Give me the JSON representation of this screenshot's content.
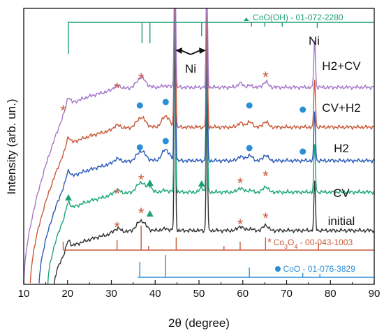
{
  "chart_data": {
    "type": "line",
    "xlabel": "2θ (degree)",
    "ylabel": "Intensity (arb. un.)",
    "xlim": [
      10,
      90
    ],
    "x_ticks": [
      "10",
      "20",
      "30",
      "40",
      "50",
      "60",
      "70",
      "80",
      "90"
    ],
    "grid": false,
    "series": [
      {
        "name": "initial",
        "color": "#333333",
        "offset": 0.0
      },
      {
        "name": "CV",
        "color": "#1aa67a",
        "offset": 1.0
      },
      {
        "name": "H2",
        "color": "#2a5ab8",
        "offset": 2.1
      },
      {
        "name": "CV+H2",
        "color": "#c8593a",
        "offset": 3.2
      },
      {
        "name": "H2+CV",
        "color": "#a577c9",
        "offset": 4.2
      }
    ],
    "ni_peaks": [
      44.5,
      51.8,
      76.4
    ],
    "references": [
      {
        "label": "CoO(OH) - 01-072-2280",
        "color": "#1f9e73",
        "marker": "triangle",
        "peaks": [
          20.2,
          37.0,
          38.8,
          50.6,
          62.0,
          65.0,
          69.0,
          77.0
        ]
      },
      {
        "label": "Co3O4 - 00-043-1003",
        "label_main": "Co",
        "label_sub1": "3",
        "label_mid": "O",
        "label_sub2": "4",
        "label_rest": " - 00-043-1003",
        "color": "#c8593a",
        "marker": "star",
        "peaks": [
          19.0,
          31.3,
          36.8,
          38.5,
          44.8,
          55.7,
          59.4,
          65.2,
          77.3
        ]
      },
      {
        "label": "CoO - 01-076-3829",
        "color": "#2a8fd6",
        "marker": "circle",
        "peaks": [
          36.5,
          42.4,
          61.5,
          73.7,
          77.6
        ]
      }
    ],
    "annotations": {
      "ni_label": "Ni",
      "ni_label_top": "Ni"
    }
  }
}
